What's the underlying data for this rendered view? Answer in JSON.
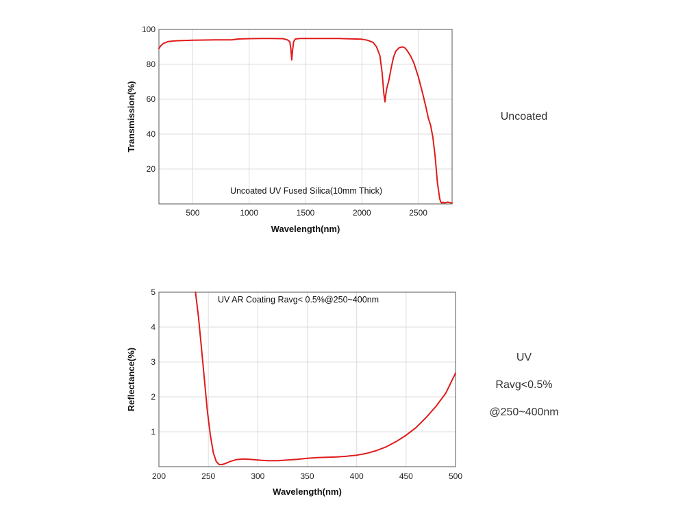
{
  "chart_data": [
    {
      "type": "line",
      "title": "",
      "annotation": "Uncoated UV Fused Silica(10mm Thick)",
      "xlabel": "Wavelength(nm)",
      "ylabel": "Transmission(%)",
      "xlim": [
        200,
        2800
      ],
      "ylim": [
        0,
        100
      ],
      "xticks": [
        500,
        1000,
        1500,
        2000,
        2500
      ],
      "yticks": [
        20,
        40,
        60,
        80,
        100
      ],
      "grid": true,
      "line_color": "#e01a1a",
      "series": [
        {
          "x": [
            200,
            215,
            240,
            280,
            350,
            500,
            700,
            850,
            900,
            1000,
            1100,
            1200,
            1300,
            1340,
            1360,
            1370,
            1378,
            1385,
            1395,
            1410,
            1450,
            1500,
            1600,
            1700,
            1800,
            1900,
            2000,
            2050,
            2100,
            2130,
            2160,
            2180,
            2195,
            2205,
            2210,
            2220,
            2240,
            2260,
            2280,
            2300,
            2330,
            2360,
            2380,
            2400,
            2430,
            2460,
            2500,
            2540,
            2570,
            2590,
            2610,
            2630,
            2650,
            2670,
            2690,
            2700,
            2710,
            2720,
            2730,
            2760,
            2800
          ],
          "y": [
            89,
            90.5,
            92,
            93,
            93.5,
            93.8,
            94,
            94,
            94.5,
            94.7,
            94.8,
            94.8,
            94.7,
            94,
            93,
            89,
            82.5,
            88,
            93,
            94.5,
            94.8,
            94.8,
            94.8,
            94.8,
            94.8,
            94.6,
            94.4,
            93.8,
            92.5,
            90,
            85,
            75,
            63,
            58.5,
            62,
            66,
            71,
            78,
            84,
            87.5,
            89.5,
            90,
            89.5,
            88,
            85,
            81,
            73,
            63,
            55,
            49,
            45,
            38,
            27,
            12,
            3,
            1,
            0.5,
            1,
            0.5,
            1,
            0.5
          ]
        }
      ]
    },
    {
      "type": "line",
      "title": "",
      "annotation": "UV AR Coating Ravg< 0.5%@250~400nm",
      "xlabel": "Wavelength(nm)",
      "ylabel": "Reflectance(%)",
      "xlim": [
        200,
        500
      ],
      "ylim": [
        0,
        5
      ],
      "xticks": [
        200,
        250,
        300,
        350,
        400,
        450,
        500
      ],
      "yticks": [
        1,
        2,
        3,
        4,
        5
      ],
      "grid": true,
      "line_color": "#e01a1a",
      "series": [
        {
          "x": [
            237,
            240,
            243,
            246,
            249,
            252,
            255,
            258,
            261,
            264,
            268,
            272,
            278,
            285,
            292,
            300,
            310,
            320,
            330,
            340,
            350,
            360,
            370,
            380,
            390,
            400,
            410,
            420,
            430,
            440,
            450,
            460,
            470,
            480,
            490,
            500
          ],
          "y": [
            5.0,
            4.3,
            3.4,
            2.5,
            1.6,
            0.9,
            0.4,
            0.15,
            0.06,
            0.06,
            0.1,
            0.15,
            0.2,
            0.22,
            0.21,
            0.19,
            0.17,
            0.17,
            0.19,
            0.21,
            0.24,
            0.26,
            0.27,
            0.28,
            0.3,
            0.33,
            0.38,
            0.46,
            0.57,
            0.72,
            0.9,
            1.12,
            1.4,
            1.72,
            2.1,
            2.68
          ]
        }
      ]
    }
  ],
  "side_labels": {
    "top": "Uncoated",
    "bottom_line1": "UV",
    "bottom_line2": "Ravg<0.5%",
    "bottom_line3": "@250~400nm"
  }
}
